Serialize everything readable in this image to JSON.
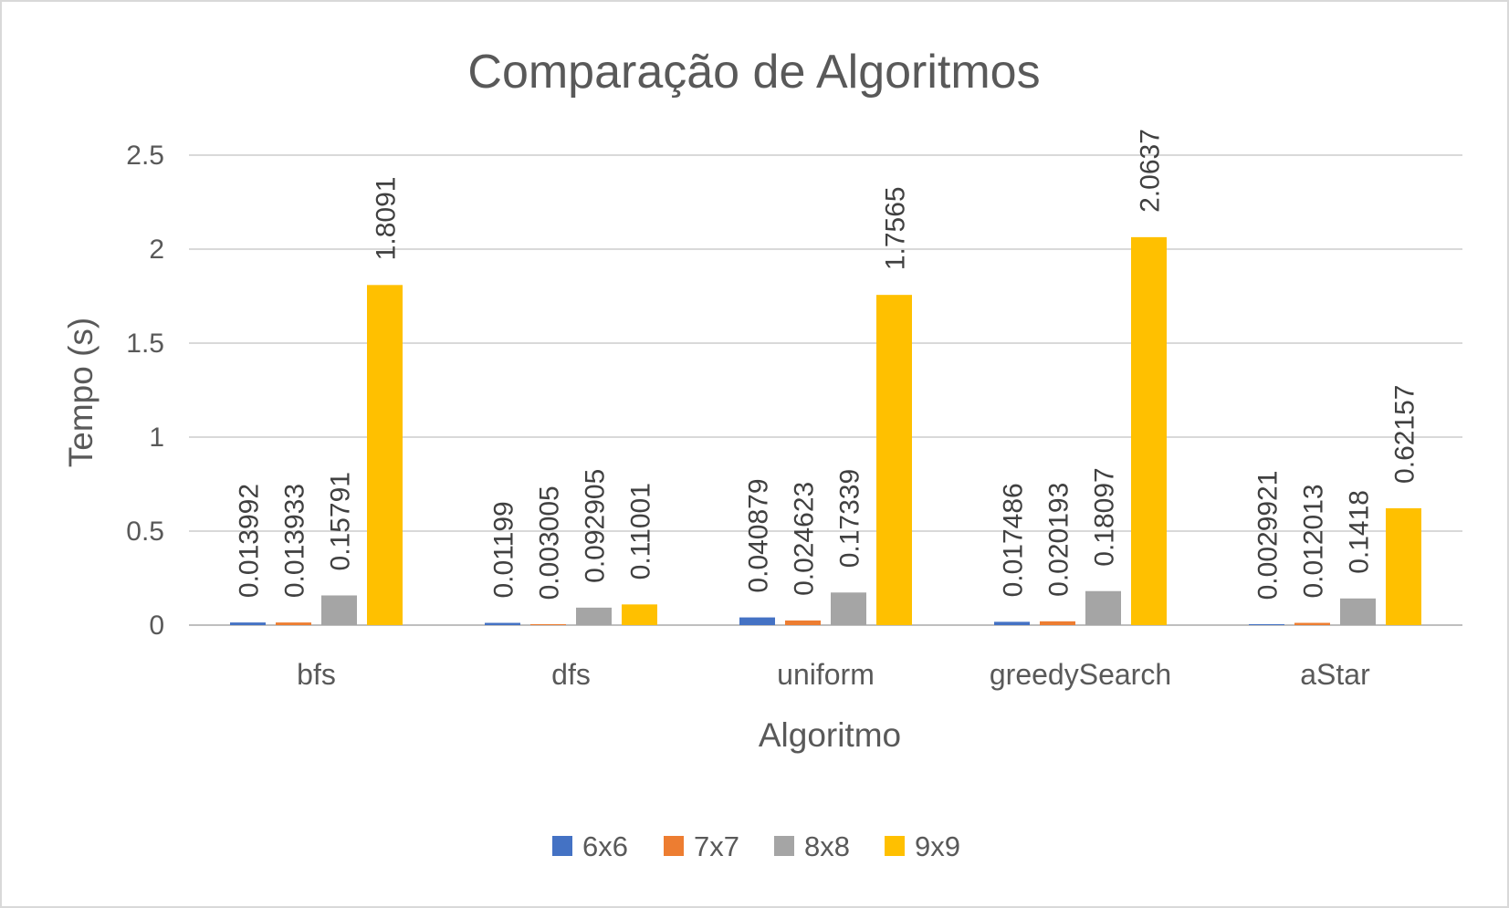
{
  "chart_data": {
    "type": "bar",
    "title": "Comparação de Algoritmos",
    "xlabel": "Algoritmo",
    "ylabel": "Tempo (s)",
    "ylim": [
      0,
      2.5
    ],
    "yticks": [
      "0",
      "0.5",
      "1",
      "1.5",
      "2",
      "2.5"
    ],
    "grid": true,
    "legend_position": "bottom",
    "categories": [
      "bfs",
      "dfs",
      "uniform",
      "greedySearch",
      "aStar"
    ],
    "series": [
      {
        "name": "6x6",
        "color": "#4472C4",
        "values": [
          0.013992,
          0.01199,
          0.040879,
          0.017486,
          0.0029921
        ],
        "labels": [
          "0.013992",
          "0.01199",
          "0.040879",
          "0.017486",
          "0.0029921"
        ]
      },
      {
        "name": "7x7",
        "color": "#ED7D31",
        "values": [
          0.013933,
          0.003005,
          0.024623,
          0.020193,
          0.012013
        ],
        "labels": [
          "0.013933",
          "0.003005",
          "0.024623",
          "0.020193",
          "0.012013"
        ]
      },
      {
        "name": "8x8",
        "color": "#A5A5A5",
        "values": [
          0.15791,
          0.092905,
          0.17339,
          0.18097,
          0.1418
        ],
        "labels": [
          "0.15791",
          "0.092905",
          "0.17339",
          "0.18097",
          "0.1418"
        ]
      },
      {
        "name": "9x9",
        "color": "#FFC000",
        "values": [
          1.8091,
          0.11001,
          1.7565,
          2.0637,
          0.62157
        ],
        "labels": [
          "1.8091",
          "0.11001",
          "1.7565",
          "2.0637",
          "0.62157"
        ]
      }
    ]
  }
}
